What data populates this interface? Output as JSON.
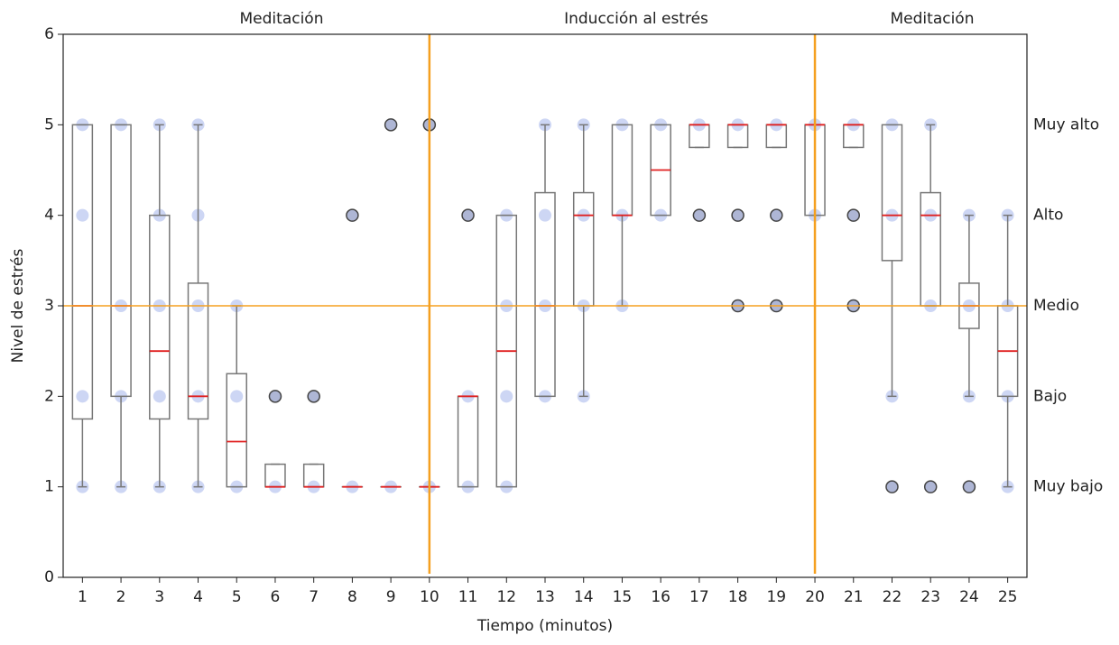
{
  "chart_data": {
    "type": "box",
    "xlabel": "Tiempo (minutos)",
    "ylabel": "Nivel de estrés",
    "xlim": [
      0.5,
      25.5
    ],
    "xticks": [
      1,
      2,
      3,
      4,
      5,
      6,
      7,
      8,
      9,
      10,
      11,
      12,
      13,
      14,
      15,
      16,
      17,
      18,
      19,
      20,
      21,
      22,
      23,
      24,
      25
    ],
    "ylim": [
      0,
      6
    ],
    "yticks": [
      0,
      1,
      2,
      3,
      4,
      5,
      6
    ],
    "y2ticks": [
      {
        "value": 5,
        "label": "Muy alto"
      },
      {
        "value": 4,
        "label": "Alto"
      },
      {
        "value": 3,
        "label": "Medio"
      },
      {
        "value": 2,
        "label": "Bajo"
      },
      {
        "value": 1,
        "label": "Muy bajo"
      }
    ],
    "annotations": [
      "Meditación",
      "Inducción al estrés",
      "Meditación"
    ],
    "hline": 3,
    "vlines": [
      10,
      20
    ],
    "accent_color": "#f5a020",
    "box_color": "#777777",
    "median_color": "#e02020",
    "point_color": "#4a6ad8",
    "boxes": [
      {
        "q1": 1.75,
        "median": 3,
        "q3": 5,
        "whislo": 1,
        "whishi": 5,
        "fliers": [],
        "points": [
          1,
          2,
          4,
          5
        ]
      },
      {
        "q1": 2,
        "median": 3,
        "q3": 5,
        "whislo": 1,
        "whishi": 5,
        "fliers": [],
        "points": [
          1,
          2,
          3,
          5
        ]
      },
      {
        "q1": 1.75,
        "median": 2.5,
        "q3": 4,
        "whislo": 1,
        "whishi": 5,
        "fliers": [],
        "points": [
          1,
          2,
          3,
          4,
          5
        ]
      },
      {
        "q1": 1.75,
        "median": 2,
        "q3": 3.25,
        "whislo": 1,
        "whishi": 5,
        "fliers": [],
        "points": [
          1,
          2,
          3,
          4,
          5
        ]
      },
      {
        "q1": 1,
        "median": 1.5,
        "q3": 2.25,
        "whislo": 1,
        "whishi": 3,
        "fliers": [],
        "points": [
          1,
          2,
          3
        ]
      },
      {
        "q1": 1,
        "median": 1,
        "q3": 1.25,
        "whislo": 1,
        "whishi": 1.25,
        "fliers": [
          2
        ],
        "points": [
          1,
          2
        ]
      },
      {
        "q1": 1,
        "median": 1,
        "q3": 1.25,
        "whislo": 1,
        "whishi": 1.25,
        "fliers": [
          2
        ],
        "points": [
          1,
          2
        ]
      },
      {
        "q1": 1,
        "median": 1,
        "q3": 1,
        "whislo": 1,
        "whishi": 1,
        "fliers": [
          4
        ],
        "points": [
          1,
          4
        ]
      },
      {
        "q1": 1,
        "median": 1,
        "q3": 1,
        "whislo": 1,
        "whishi": 1,
        "fliers": [
          5
        ],
        "points": [
          1,
          5
        ]
      },
      {
        "q1": 1,
        "median": 1,
        "q3": 1,
        "whislo": 1,
        "whishi": 1,
        "fliers": [
          5
        ],
        "points": [
          1,
          5
        ]
      },
      {
        "q1": 1,
        "median": 2,
        "q3": 2,
        "whislo": 1,
        "whishi": 2,
        "fliers": [
          4
        ],
        "points": [
          1,
          2,
          4
        ]
      },
      {
        "q1": 1,
        "median": 2.5,
        "q3": 4,
        "whislo": 1,
        "whishi": 4,
        "fliers": [],
        "points": [
          1,
          2,
          3,
          4
        ]
      },
      {
        "q1": 2,
        "median": 3,
        "q3": 4.25,
        "whislo": 2,
        "whishi": 5,
        "fliers": [],
        "points": [
          2,
          3,
          4,
          5
        ]
      },
      {
        "q1": 3,
        "median": 4,
        "q3": 4.25,
        "whislo": 2,
        "whishi": 5,
        "fliers": [],
        "points": [
          2,
          3,
          4,
          5
        ]
      },
      {
        "q1": 4,
        "median": 4,
        "q3": 5,
        "whislo": 3,
        "whishi": 5,
        "fliers": [],
        "points": [
          3,
          4,
          5
        ]
      },
      {
        "q1": 4,
        "median": 4.5,
        "q3": 5,
        "whislo": 4,
        "whishi": 5,
        "fliers": [],
        "points": [
          4,
          5
        ]
      },
      {
        "q1": 4.75,
        "median": 5,
        "q3": 5,
        "whislo": 4.75,
        "whishi": 5,
        "fliers": [
          4
        ],
        "points": [
          4,
          5
        ]
      },
      {
        "q1": 4.75,
        "median": 5,
        "q3": 5,
        "whislo": 4.75,
        "whishi": 5,
        "fliers": [
          3,
          4
        ],
        "points": [
          3,
          4,
          5
        ]
      },
      {
        "q1": 4.75,
        "median": 5,
        "q3": 5,
        "whislo": 4.75,
        "whishi": 5,
        "fliers": [
          3,
          4
        ],
        "points": [
          3,
          4,
          5
        ]
      },
      {
        "q1": 4,
        "median": 5,
        "q3": 5,
        "whislo": 4,
        "whishi": 5,
        "fliers": [],
        "points": [
          4,
          5
        ]
      },
      {
        "q1": 4.75,
        "median": 5,
        "q3": 5,
        "whislo": 4.75,
        "whishi": 5,
        "fliers": [
          3,
          4
        ],
        "points": [
          3,
          4,
          5
        ]
      },
      {
        "q1": 3.5,
        "median": 4,
        "q3": 5,
        "whislo": 2,
        "whishi": 5,
        "fliers": [
          1
        ],
        "points": [
          1,
          2,
          4,
          5
        ]
      },
      {
        "q1": 3,
        "median": 4,
        "q3": 4.25,
        "whislo": 3,
        "whishi": 5,
        "fliers": [
          1
        ],
        "points": [
          1,
          3,
          4,
          5
        ]
      },
      {
        "q1": 2.75,
        "median": 3,
        "q3": 3.25,
        "whislo": 2,
        "whishi": 4,
        "fliers": [
          1
        ],
        "points": [
          1,
          2,
          3,
          4
        ]
      },
      {
        "q1": 2,
        "median": 2.5,
        "q3": 3,
        "whislo": 1,
        "whishi": 4,
        "fliers": [],
        "points": [
          1,
          2,
          3,
          4
        ]
      }
    ]
  }
}
